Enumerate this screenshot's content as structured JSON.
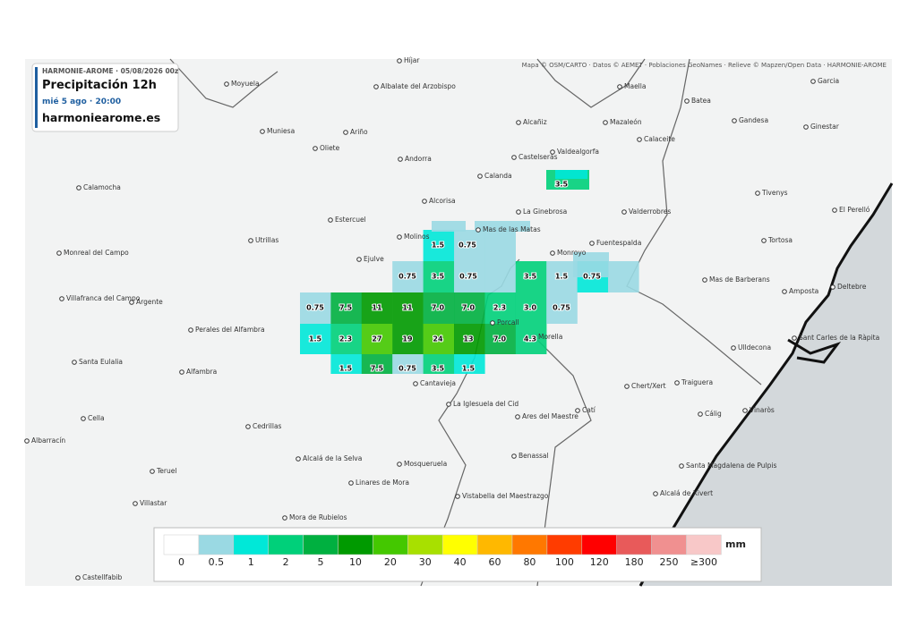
{
  "header": {
    "model": "HARMONIE-AROME · 05/08/2026 00z",
    "title": "Precipitación 12h",
    "datetime": "mié 5 ago · 20:00",
    "site": "harmoniearome.es"
  },
  "attribution": "Mapa © OSM/CARTO · Datos © AEMET · Poblaciones GeoNames · Relieve © Mapzen/Open Data · HARMONIE-AROME",
  "places": [
    "Híjar",
    "Moyuela",
    "Albalate del Arzobispo",
    "Maella",
    "Garcia",
    "Batea",
    "Alcañiz",
    "Mazaleón",
    "Gandesa",
    "Ginestar",
    "Muniesa",
    "Ariño",
    "Oliete",
    "Calaceite",
    "Castelserás",
    "Valdealgorfa",
    "Andorra",
    "Calanda",
    "Calamocha",
    "Tivenys",
    "Alcorisa",
    "La Ginebrosa",
    "Valderrobres",
    "El Perelló",
    "Estercuel",
    "Mas de las Matas",
    "Molinos",
    "Utrillas",
    "Tortosa",
    "Fuentespalda",
    "Monreal del Campo",
    "Monroyo",
    "Ejulve",
    "Mas de Barberans",
    "Amposta",
    "Deltebre",
    "Villafranca del Campo",
    "Argente",
    "Porcall",
    "Morella",
    "Perales del Alfambra",
    "Ulldecona",
    "Sant Carles de la Ràpita",
    "Santa Eulalia",
    "Alfambra",
    "Cantavieja",
    "Chert/Xert",
    "Traiguera",
    "La Iglesuela del Cid",
    "Catí",
    "Ares del Maestre",
    "Cálig",
    "Vinaròs",
    "Cella",
    "Cedrillas",
    "Albarracín",
    "Benassal",
    "Alcalá de la Selva",
    "Mosqueruela",
    "Santa Magdalena de Pulpis",
    "Teruel",
    "Linares de Mora",
    "Vistabella del Maestrazgo",
    "Alcalá de Xivert",
    "Villastar",
    "Mora de Rubielos",
    "Castellfabib"
  ],
  "precip_labels": [
    {
      "value": 3.5
    },
    {
      "value": 1.5
    },
    {
      "value": 0.75
    },
    {
      "value": 0.75
    },
    {
      "value": 3.5
    },
    {
      "value": 0.75
    },
    {
      "value": 3.5
    },
    {
      "value": 1.5
    },
    {
      "value": 0.75
    },
    {
      "value": 0.75
    },
    {
      "value": 7.5
    },
    {
      "value": 11
    },
    {
      "value": 11
    },
    {
      "value": 7,
      "label": "7.0"
    },
    {
      "value": 7,
      "label": "7.0"
    },
    {
      "value": 2.3
    },
    {
      "value": 3,
      "label": "3.0"
    },
    {
      "value": 0.75
    },
    {
      "value": 1.5
    },
    {
      "value": 2.3
    },
    {
      "value": 27
    },
    {
      "value": 19
    },
    {
      "value": 24
    },
    {
      "value": 13
    },
    {
      "value": 7,
      "label": "7.0"
    },
    {
      "value": 4.3
    },
    {
      "value": 1.5
    },
    {
      "value": 7.5
    },
    {
      "value": 0.75
    },
    {
      "value": 3.5
    },
    {
      "value": 1.5
    }
  ],
  "legend": {
    "unit": "mm",
    "ticks": [
      0,
      0.5,
      1,
      2,
      5,
      10,
      20,
      30,
      40,
      60,
      80,
      100,
      120,
      180,
      250,
      {
        "value": 300,
        "label": "≥300"
      }
    ],
    "colors": [
      "#ffffff",
      "#9ad9e3",
      "#00e8d8",
      "#00d07a",
      "#00b040",
      "#009a00",
      "#44c800",
      "#a8e000",
      "#ffff00",
      "#ffb800",
      "#ff7800",
      "#ff3c00",
      "#ff0000",
      "#e85a5a",
      "#f09090",
      "#f8c8c8"
    ]
  }
}
